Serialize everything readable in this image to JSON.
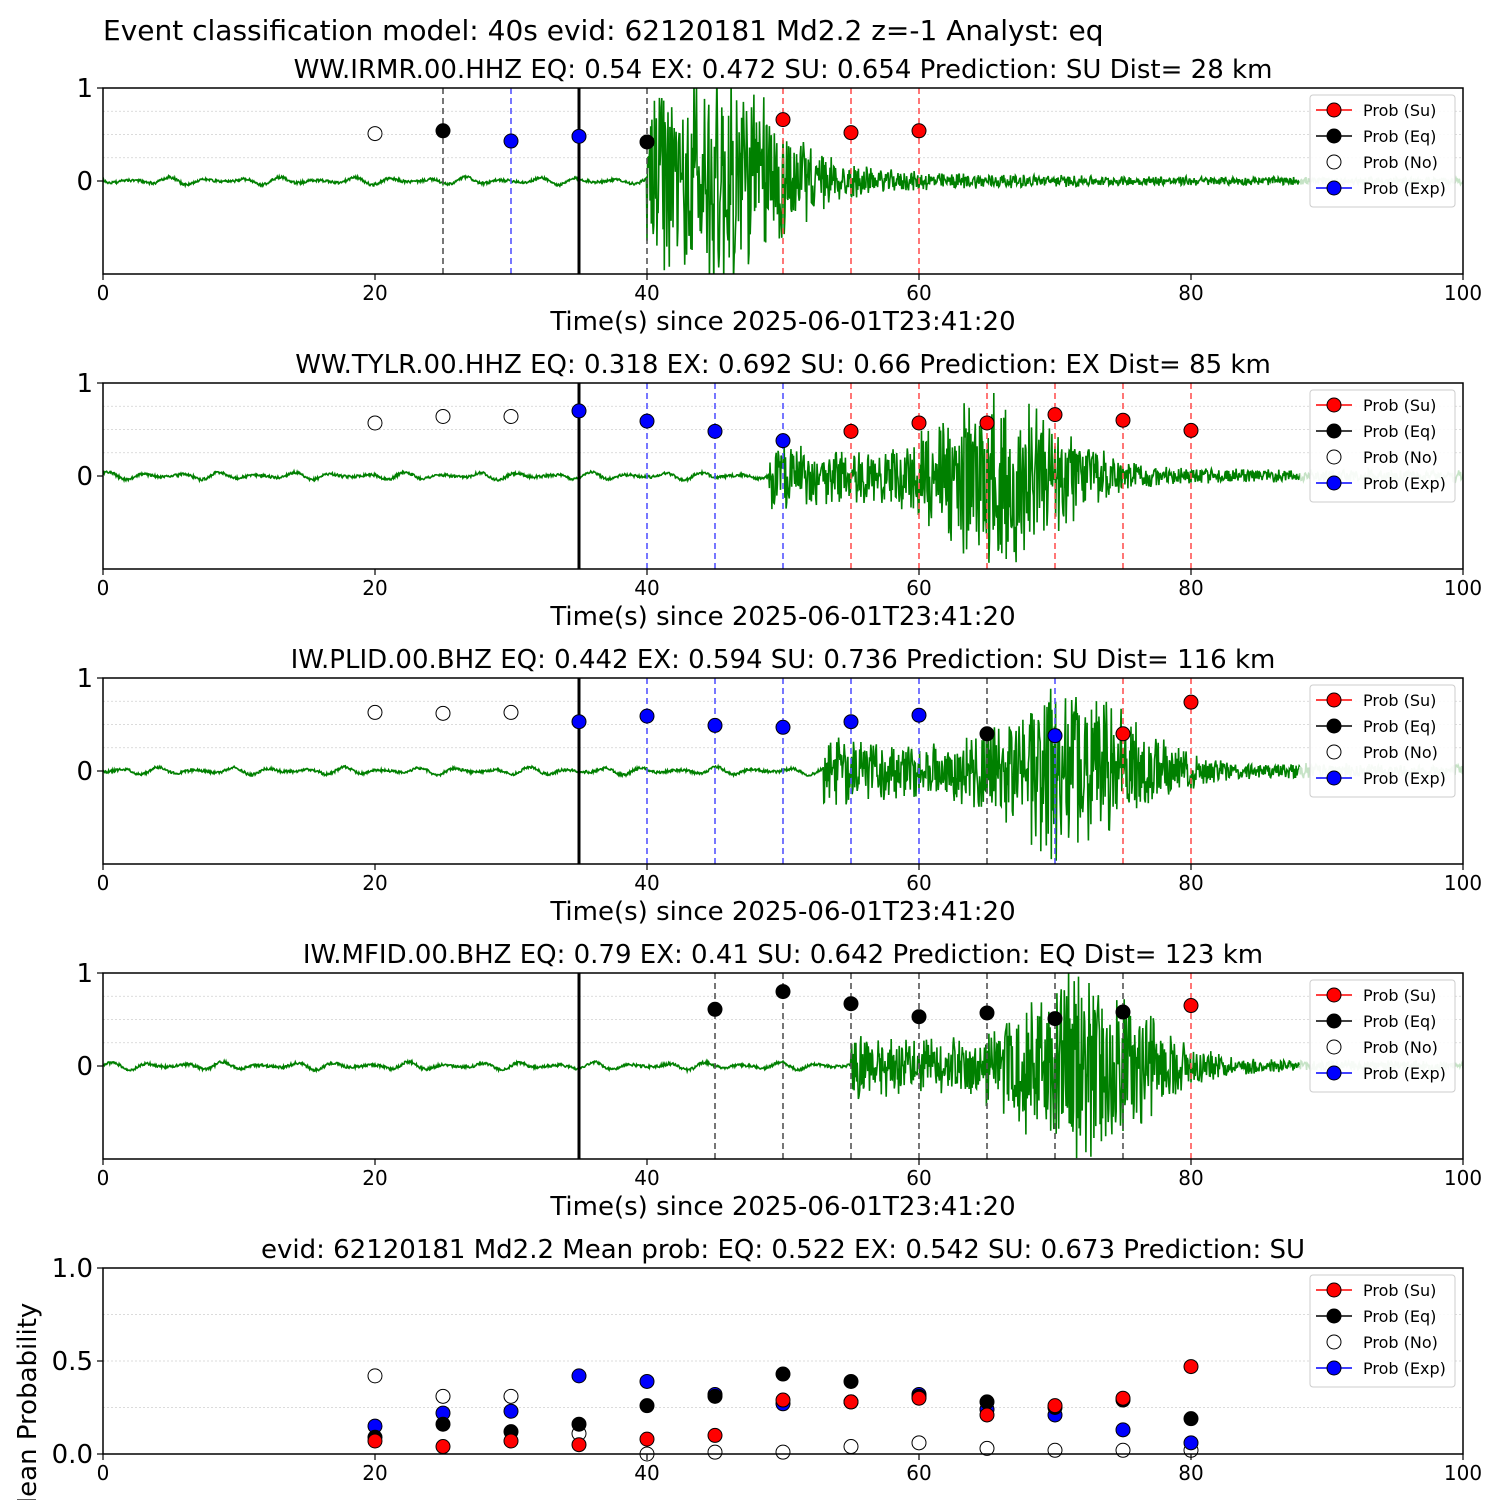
{
  "figure": {
    "suptitle": "Event classification model: 40s evid: 62120181 Md2.2 z=-1 Analyst: eq"
  },
  "legend": {
    "entries": [
      {
        "label": "Prob (Su)",
        "color": "#ff0000",
        "filled": true
      },
      {
        "label": "Prob (Eq)",
        "color": "#000000",
        "filled": true
      },
      {
        "label": "Prob (No)",
        "color": "#ffffff",
        "filled": false
      },
      {
        "label": "Prob (Exp)",
        "color": "#0000ff",
        "filled": true
      }
    ]
  },
  "colors": {
    "su": "#ff0000",
    "eq": "#000000",
    "no": "#ffffff",
    "exp": "#0000ff",
    "waveform": "#008000",
    "waveform_tail": "#c6e3c6",
    "su_line": "#ff5555",
    "eq_line": "#555555",
    "exp_line": "#5555ff"
  },
  "chart_data": [
    {
      "type": "scatter",
      "title": "WW.IRMR.00.HHZ   EQ: 0.54  EX: 0.472  SU: 0.654   Prediction: SU    Dist= 28 km",
      "xlabel": "Time(s) since 2025-06-01T23:41:20",
      "ylabel": "",
      "xlim": [
        0,
        100
      ],
      "ylim": [
        -1,
        1
      ],
      "yticks": [
        "1",
        "0"
      ],
      "xticks": [
        "0",
        "20",
        "40",
        "60",
        "80",
        "100"
      ],
      "grid": "horizontal dotted",
      "legend_position": "top-right",
      "arrival_time": 35,
      "waveform": {
        "onset": 40,
        "peak": 45,
        "max_amp": 1.0,
        "end_noise": 0.04,
        "seed": 3
      },
      "window_lines": [
        {
          "x": 25,
          "cls": "eq"
        },
        {
          "x": 30,
          "cls": "exp"
        },
        {
          "x": 40,
          "cls": "eq"
        },
        {
          "x": 50,
          "cls": "su"
        },
        {
          "x": 55,
          "cls": "su"
        },
        {
          "x": 60,
          "cls": "su"
        }
      ],
      "points": [
        {
          "x": 20,
          "y": 0.51,
          "cls": "no"
        },
        {
          "x": 25,
          "y": 0.54,
          "cls": "eq"
        },
        {
          "x": 30,
          "y": 0.43,
          "cls": "exp"
        },
        {
          "x": 35,
          "y": 0.48,
          "cls": "exp"
        },
        {
          "x": 40,
          "y": 0.42,
          "cls": "eq"
        },
        {
          "x": 50,
          "y": 0.66,
          "cls": "su"
        },
        {
          "x": 55,
          "y": 0.52,
          "cls": "su"
        },
        {
          "x": 60,
          "y": 0.54,
          "cls": "su"
        }
      ]
    },
    {
      "type": "scatter",
      "title": "WW.TYLR.00.HHZ   EQ: 0.318  EX: 0.692  SU: 0.66   Prediction: EX    Dist= 85 km",
      "xlabel": "Time(s) since 2025-06-01T23:41:20",
      "ylabel": "",
      "xlim": [
        0,
        100
      ],
      "ylim": [
        -1,
        1
      ],
      "yticks": [
        "1",
        "0"
      ],
      "xticks": [
        "0",
        "20",
        "40",
        "60",
        "80",
        "100"
      ],
      "grid": "horizontal dotted",
      "legend_position": "top-right",
      "arrival_time": 35,
      "waveform": {
        "onset": 49,
        "peak": 66,
        "max_amp": 0.85,
        "end_noise": 0.06,
        "seed": 7
      },
      "window_lines": [
        {
          "x": 40,
          "cls": "exp"
        },
        {
          "x": 45,
          "cls": "exp"
        },
        {
          "x": 50,
          "cls": "exp"
        },
        {
          "x": 55,
          "cls": "su"
        },
        {
          "x": 60,
          "cls": "su"
        },
        {
          "x": 65,
          "cls": "su"
        },
        {
          "x": 70,
          "cls": "su"
        },
        {
          "x": 75,
          "cls": "su"
        },
        {
          "x": 80,
          "cls": "su"
        }
      ],
      "points": [
        {
          "x": 20,
          "y": 0.57,
          "cls": "no"
        },
        {
          "x": 25,
          "y": 0.64,
          "cls": "no"
        },
        {
          "x": 30,
          "y": 0.64,
          "cls": "no"
        },
        {
          "x": 35,
          "y": 0.7,
          "cls": "exp"
        },
        {
          "x": 40,
          "y": 0.59,
          "cls": "exp"
        },
        {
          "x": 45,
          "y": 0.48,
          "cls": "exp"
        },
        {
          "x": 50,
          "y": 0.38,
          "cls": "exp"
        },
        {
          "x": 55,
          "y": 0.48,
          "cls": "su"
        },
        {
          "x": 60,
          "y": 0.57,
          "cls": "su"
        },
        {
          "x": 65,
          "y": 0.57,
          "cls": "su"
        },
        {
          "x": 70,
          "y": 0.66,
          "cls": "su"
        },
        {
          "x": 75,
          "y": 0.6,
          "cls": "su"
        },
        {
          "x": 80,
          "y": 0.49,
          "cls": "su"
        }
      ]
    },
    {
      "type": "scatter",
      "title": "IW.PLID.00.BHZ   EQ: 0.442  EX: 0.594  SU: 0.736   Prediction: SU    Dist= 116 km",
      "xlabel": "Time(s) since 2025-06-01T23:41:20",
      "ylabel": "",
      "xlim": [
        0,
        100
      ],
      "ylim": [
        -1,
        1
      ],
      "yticks": [
        "1",
        "0"
      ],
      "xticks": [
        "0",
        "20",
        "40",
        "60",
        "80",
        "100"
      ],
      "grid": "horizontal dotted",
      "legend_position": "top-right",
      "arrival_time": 35,
      "waveform": {
        "onset": 53,
        "peak": 71,
        "max_amp": 0.9,
        "end_noise": 0.07,
        "seed": 11
      },
      "window_lines": [
        {
          "x": 40,
          "cls": "exp"
        },
        {
          "x": 45,
          "cls": "exp"
        },
        {
          "x": 50,
          "cls": "exp"
        },
        {
          "x": 55,
          "cls": "exp"
        },
        {
          "x": 60,
          "cls": "exp"
        },
        {
          "x": 65,
          "cls": "eq"
        },
        {
          "x": 70,
          "cls": "exp"
        },
        {
          "x": 75,
          "cls": "su"
        },
        {
          "x": 80,
          "cls": "su"
        }
      ],
      "points": [
        {
          "x": 20,
          "y": 0.63,
          "cls": "no"
        },
        {
          "x": 25,
          "y": 0.62,
          "cls": "no"
        },
        {
          "x": 30,
          "y": 0.63,
          "cls": "no"
        },
        {
          "x": 35,
          "y": 0.53,
          "cls": "exp"
        },
        {
          "x": 40,
          "y": 0.59,
          "cls": "exp"
        },
        {
          "x": 45,
          "y": 0.49,
          "cls": "exp"
        },
        {
          "x": 50,
          "y": 0.47,
          "cls": "exp"
        },
        {
          "x": 55,
          "y": 0.53,
          "cls": "exp"
        },
        {
          "x": 60,
          "y": 0.6,
          "cls": "exp"
        },
        {
          "x": 65,
          "y": 0.4,
          "cls": "eq"
        },
        {
          "x": 70,
          "y": 0.38,
          "cls": "exp"
        },
        {
          "x": 75,
          "y": 0.4,
          "cls": "su"
        },
        {
          "x": 80,
          "y": 0.74,
          "cls": "su"
        }
      ]
    },
    {
      "type": "scatter",
      "title": "IW.MFID.00.BHZ   EQ: 0.79  EX: 0.41  SU: 0.642   Prediction: EQ    Dist= 123 km",
      "xlabel": "Time(s) since 2025-06-01T23:41:20",
      "ylabel": "",
      "xlim": [
        0,
        100
      ],
      "ylim": [
        -1,
        1
      ],
      "yticks": [
        "1",
        "0"
      ],
      "xticks": [
        "0",
        "20",
        "40",
        "60",
        "80",
        "100"
      ],
      "grid": "horizontal dotted",
      "legend_position": "top-right",
      "arrival_time": 35,
      "waveform": {
        "onset": 55,
        "peak": 72,
        "max_amp": 0.95,
        "end_noise": 0.05,
        "seed": 19
      },
      "window_lines": [
        {
          "x": 45,
          "cls": "eq"
        },
        {
          "x": 50,
          "cls": "eq"
        },
        {
          "x": 55,
          "cls": "eq"
        },
        {
          "x": 60,
          "cls": "eq"
        },
        {
          "x": 65,
          "cls": "eq"
        },
        {
          "x": 70,
          "cls": "eq"
        },
        {
          "x": 75,
          "cls": "eq"
        },
        {
          "x": 80,
          "cls": "su"
        }
      ],
      "points": [
        {
          "x": 45,
          "y": 0.61,
          "cls": "eq"
        },
        {
          "x": 50,
          "y": 0.8,
          "cls": "eq"
        },
        {
          "x": 55,
          "y": 0.67,
          "cls": "eq"
        },
        {
          "x": 60,
          "y": 0.53,
          "cls": "eq"
        },
        {
          "x": 65,
          "y": 0.57,
          "cls": "eq"
        },
        {
          "x": 70,
          "y": 0.51,
          "cls": "eq"
        },
        {
          "x": 75,
          "y": 0.58,
          "cls": "eq"
        },
        {
          "x": 80,
          "y": 0.65,
          "cls": "su"
        }
      ]
    },
    {
      "type": "scatter",
      "title": "evid: 62120181  Md2.2   Mean prob:   EQ: 0.522  EX: 0.542  SU: 0.673   Prediction: SU",
      "xlabel": "",
      "ylabel": "Mean Probability",
      "xlim": [
        0,
        100
      ],
      "ylim": [
        0,
        1
      ],
      "yticks": [
        "1.0",
        "0.5",
        "0.0"
      ],
      "xticks": [
        "0",
        "20",
        "40",
        "60",
        "80",
        "100"
      ],
      "grid": "horizontal dotted",
      "legend_position": "top-right",
      "x": [
        20,
        25,
        30,
        35,
        40,
        45,
        50,
        55,
        60,
        65,
        70,
        75,
        80
      ],
      "series": [
        {
          "key": "no",
          "values": [
            0.42,
            0.31,
            0.31,
            0.11,
            0.0,
            0.01,
            0.01,
            0.04,
            0.06,
            0.03,
            0.02,
            0.02,
            0.02
          ]
        },
        {
          "key": "exp",
          "values": [
            0.15,
            0.22,
            0.23,
            0.42,
            0.39,
            0.32,
            0.27,
            0.28,
            0.32,
            0.24,
            0.21,
            0.13,
            0.06
          ]
        },
        {
          "key": "eq",
          "values": [
            0.09,
            0.16,
            0.12,
            0.16,
            0.26,
            0.31,
            0.43,
            0.39,
            0.31,
            0.28,
            0.25,
            0.29,
            0.19
          ]
        },
        {
          "key": "su",
          "values": [
            0.07,
            0.04,
            0.07,
            0.05,
            0.08,
            0.1,
            0.29,
            0.28,
            0.3,
            0.21,
            0.26,
            0.3,
            0.47
          ]
        }
      ]
    }
  ]
}
